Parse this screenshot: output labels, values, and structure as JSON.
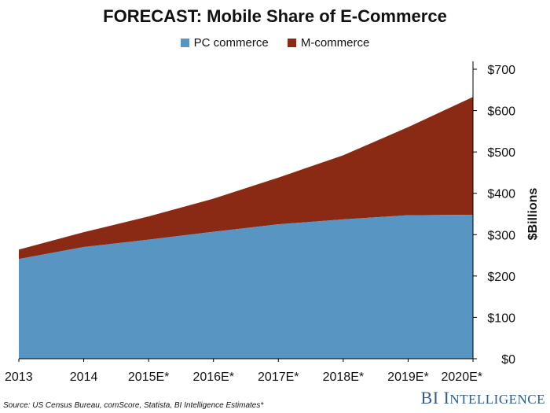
{
  "chart_data": {
    "type": "area",
    "stacked": true,
    "title": "FORECAST: Mobile Share of E-Commerce",
    "ylabel": "$Billions",
    "y_axis_side": "right",
    "ylim": [
      0,
      700
    ],
    "y_ticks": [
      0,
      100,
      200,
      300,
      400,
      500,
      600,
      700
    ],
    "y_tick_labels": [
      "$0",
      "$100",
      "$200",
      "$300",
      "$400",
      "$500",
      "$600",
      "$700"
    ],
    "categories": [
      "2013",
      "2014",
      "2015E*",
      "2016E*",
      "2017E*",
      "2018E*",
      "2019E*",
      "2020E*"
    ],
    "series": [
      {
        "name": "PC commerce",
        "color": "#5895c2",
        "values": [
          241,
          270,
          288,
          307,
          325,
          337,
          347,
          348
        ]
      },
      {
        "name": "M-commerce",
        "color": "#8b2a14",
        "values": [
          23,
          36,
          56,
          80,
          113,
          155,
          213,
          285
        ]
      }
    ],
    "legend_position": "top-center",
    "grid": false
  },
  "footer": {
    "source": "Source: US Census Bureau, comScore, Statista, BI Intelligence Estimates*",
    "brand_bi": "BI ",
    "brand_intel_first": "I",
    "brand_intel_rest": "NTELLIGENCE"
  }
}
